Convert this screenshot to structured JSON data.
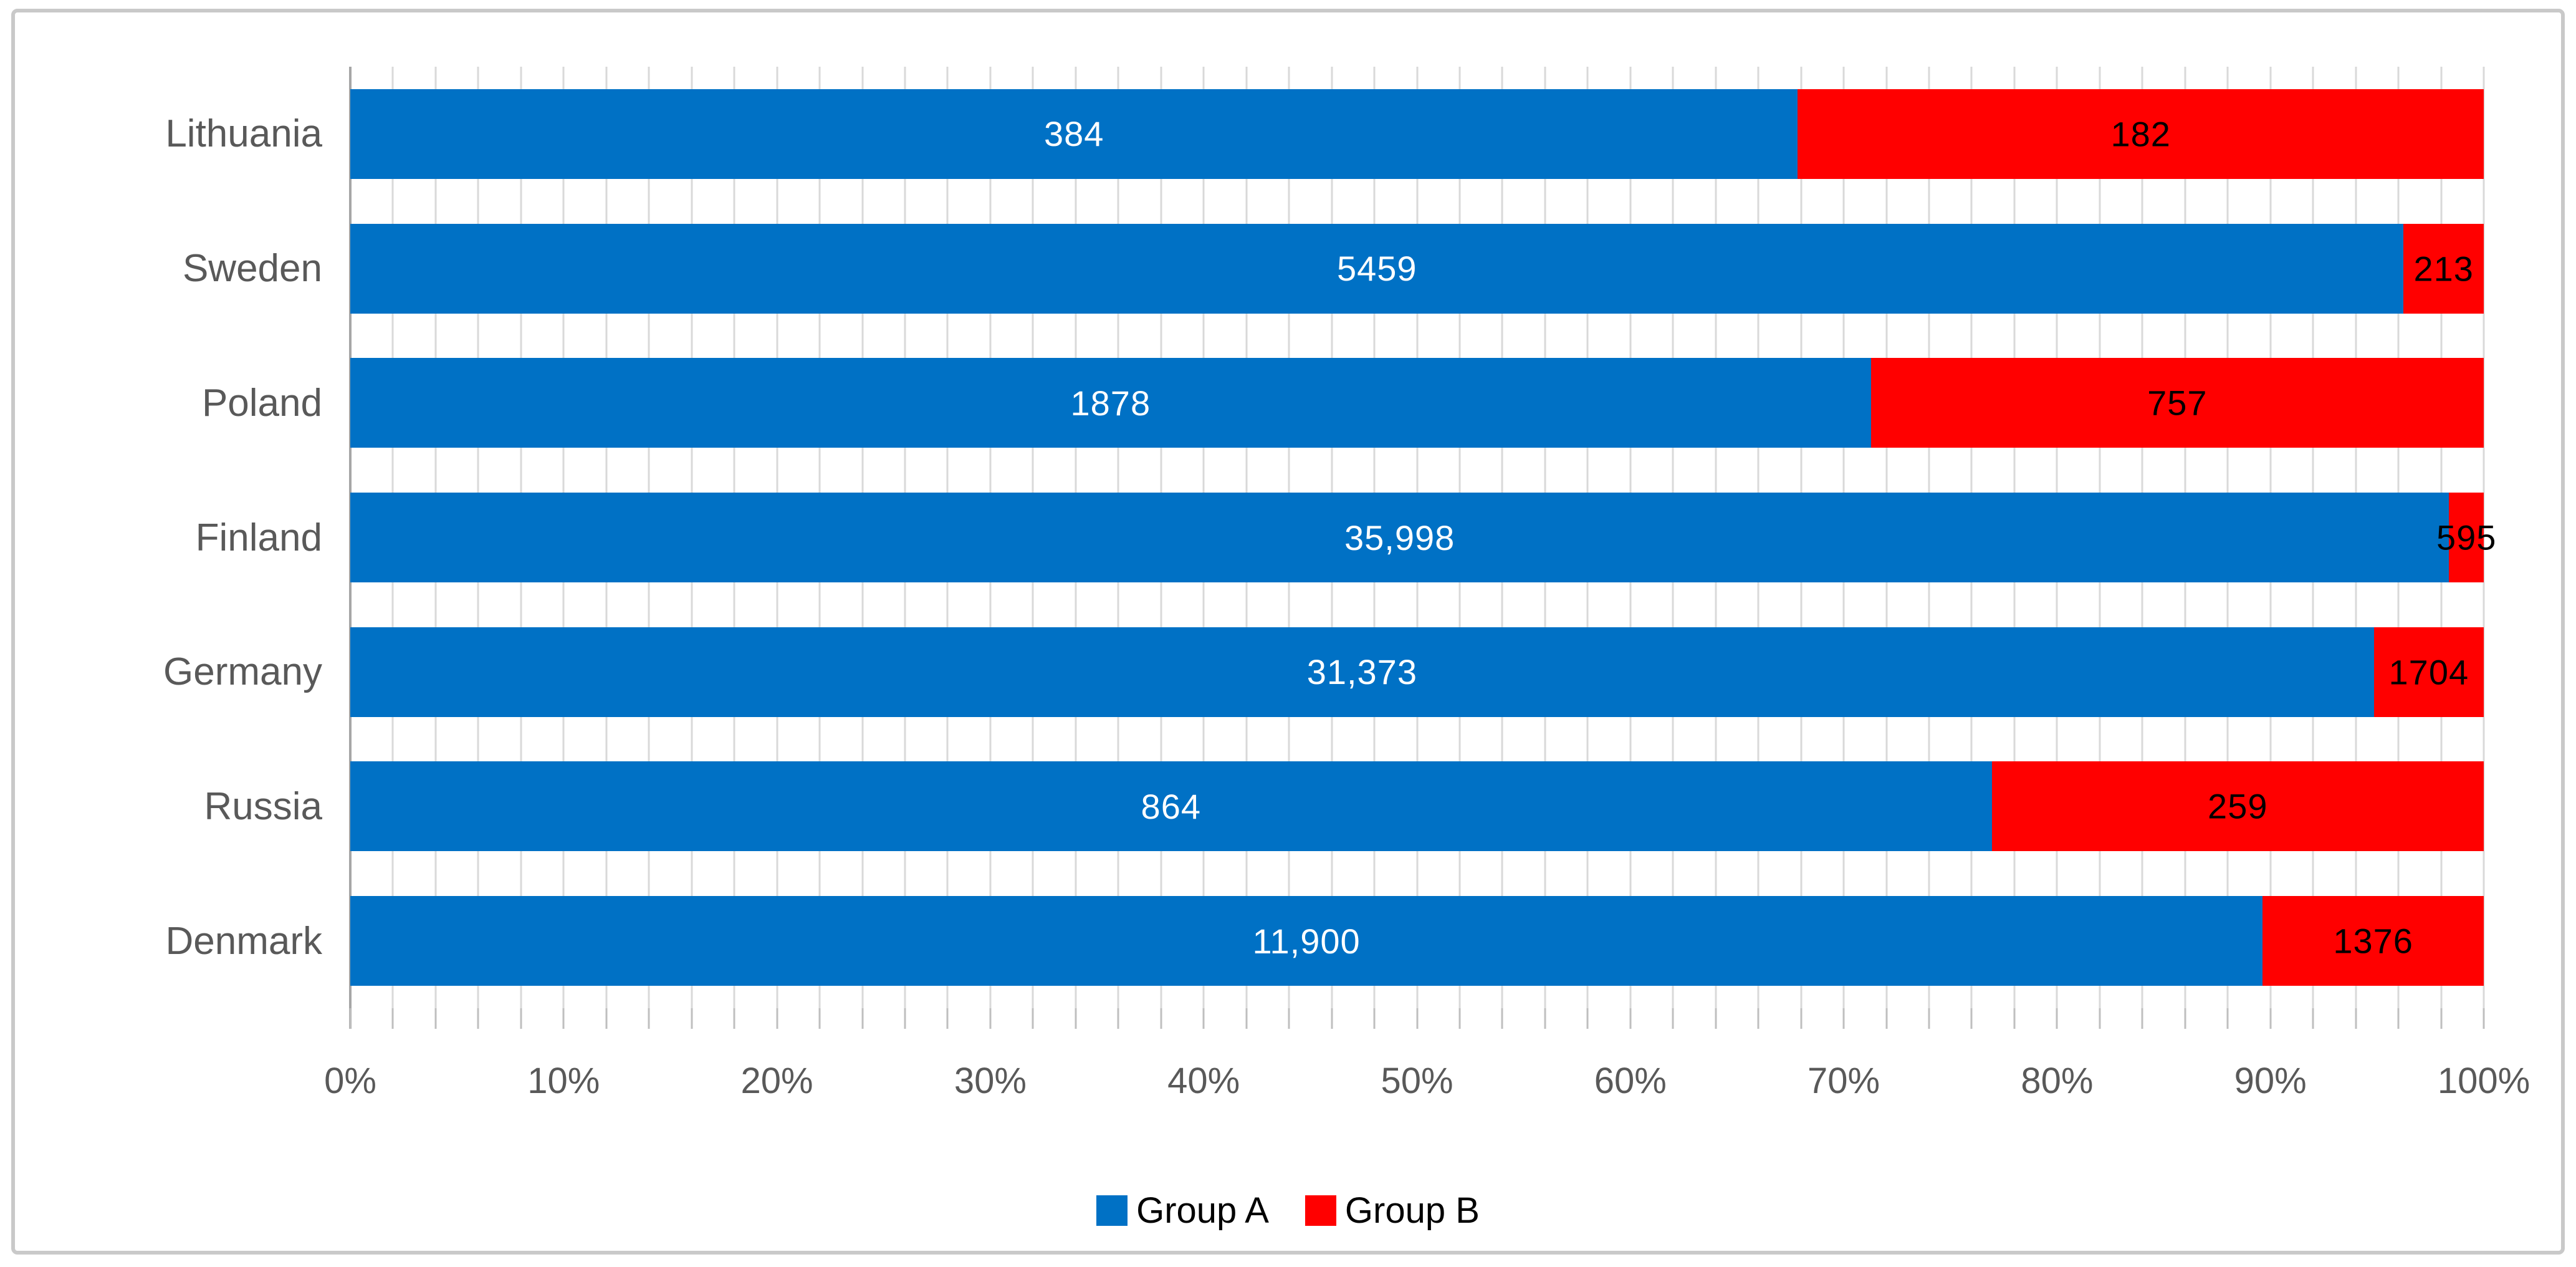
{
  "chart_data": {
    "type": "bar",
    "orientation": "horizontal",
    "stacked_100_percent": true,
    "title": "",
    "xlabel": "",
    "ylabel": "",
    "xlim": [
      0,
      100
    ],
    "x_tick_labels": [
      "0%",
      "10%",
      "20%",
      "30%",
      "40%",
      "50%",
      "60%",
      "70%",
      "80%",
      "90%",
      "100%"
    ],
    "x_minor_tick_step_percent": 2,
    "gridlines": "vertical, every 2%",
    "legend_position": "bottom-center",
    "categories": [
      "Lithuania",
      "Sweden",
      "Poland",
      "Finland",
      "Germany",
      "Russia",
      "Denmark"
    ],
    "series": [
      {
        "name": "Group A",
        "values": [
          384,
          5459,
          1878,
          35998,
          31373,
          864,
          11900
        ],
        "data_labels": [
          "384",
          "5459",
          "1878",
          "35,998",
          "31,373",
          "864",
          "11,900"
        ]
      },
      {
        "name": "Group B",
        "values": [
          182,
          213,
          757,
          595,
          1704,
          259,
          1376
        ],
        "data_labels": [
          "182",
          "213",
          "757",
          "595",
          "1704",
          "259",
          "1376"
        ]
      }
    ]
  },
  "legend": {
    "items": [
      {
        "label": "Group A",
        "color": "#0071C5"
      },
      {
        "label": "Group B",
        "color": "#FF0000"
      }
    ]
  },
  "colors": {
    "series_a": "#0071C5",
    "series_b": "#FF0000",
    "label_on_a": "#FFFFFF",
    "label_on_b": "#000000",
    "gridline": "#D9D9D9",
    "tick": "#BFBFBF",
    "axis_line": "#A6A6A6",
    "axis_text": "#595959",
    "frame_border": "#C9C9C9"
  }
}
